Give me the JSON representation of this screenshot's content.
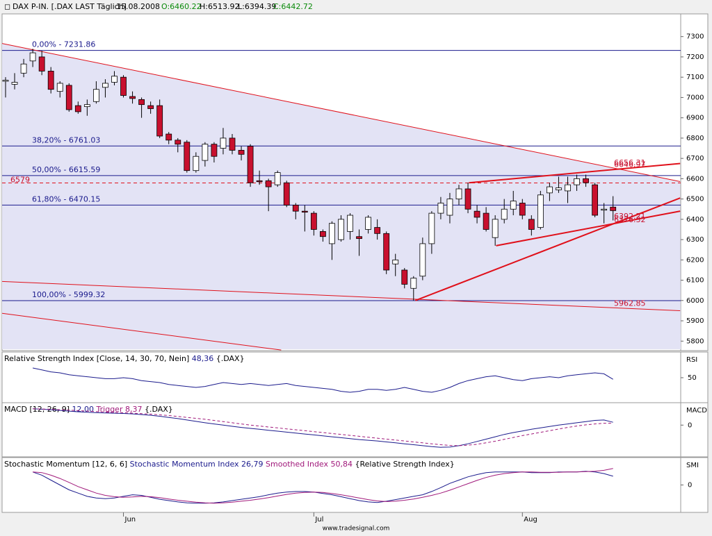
{
  "header": {
    "instrument": "DAX P-IN. [.DAX LAST Täglich]",
    "date": "15.08.2008",
    "open": "O:6460.22",
    "high": "H:6513.92",
    "low": "L:6394.39",
    "close": "C:6442.72"
  },
  "footer": "www.tradesignal.com",
  "chart_data": [
    {
      "type": "candlestick",
      "categories": [
        null,
        null,
        null,
        null,
        null,
        null,
        null,
        null,
        null,
        null,
        null,
        null,
        null,
        "Jun",
        null,
        null,
        null,
        null,
        null,
        null,
        null,
        null,
        null,
        null,
        null,
        null,
        null,
        null,
        null,
        null,
        null,
        null,
        null,
        null,
        "Jul",
        null,
        null,
        null,
        null,
        null,
        null,
        null,
        null,
        null,
        null,
        null,
        null,
        null,
        null,
        null,
        null,
        null,
        null,
        null,
        null,
        null,
        null,
        "Aug",
        null,
        null,
        null,
        null,
        null,
        null,
        null,
        null,
        null,
        null
      ],
      "open": [
        7080,
        7065,
        7120,
        7180,
        7200,
        7130,
        7030,
        7060,
        6960,
        6955,
        6980,
        7050,
        7075,
        7100,
        7005,
        6990,
        6960,
        6960,
        6820,
        6790,
        6780,
        6640,
        6690,
        6770,
        6750,
        6800,
        6740,
        6760,
        6590,
        6590,
        6570,
        6580,
        6470,
        6440,
        6430,
        6340,
        6280,
        6300,
        6340,
        6315,
        6350,
        6360,
        6330,
        6180,
        6150,
        6060,
        6120,
        6280,
        6430,
        6420,
        6500,
        6550,
        6440,
        6430,
        6310,
        6400,
        6450,
        6480,
        6400,
        6360,
        6530,
        6545,
        6540,
        6570,
        6600,
        6570,
        6445,
        6460.22
      ],
      "high": [
        7100,
        7120,
        7190,
        7240,
        7230,
        7150,
        7080,
        7070,
        6980,
        6990,
        7080,
        7090,
        7130,
        7110,
        7030,
        7000,
        6980,
        6990,
        6830,
        6800,
        6790,
        6730,
        6780,
        6780,
        6850,
        6820,
        6760,
        6770,
        6640,
        6600,
        6640,
        6590,
        6480,
        6470,
        6440,
        6350,
        6390,
        6420,
        6430,
        6350,
        6420,
        6400,
        6340,
        6230,
        6160,
        6120,
        6310,
        6440,
        6510,
        6530,
        6570,
        6580,
        6470,
        6460,
        6420,
        6500,
        6540,
        6500,
        6420,
        6540,
        6580,
        6610,
        6610,
        6620,
        6620,
        6580,
        6480,
        6513.92
      ],
      "low": [
        7000,
        7040,
        7100,
        7150,
        7110,
        7020,
        7000,
        6930,
        6920,
        6910,
        6970,
        7000,
        7060,
        7000,
        6970,
        6900,
        6920,
        6800,
        6770,
        6730,
        6630,
        6630,
        6660,
        6680,
        6720,
        6720,
        6690,
        6560,
        6570,
        6440,
        6560,
        6460,
        6400,
        6340,
        6320,
        6290,
        6200,
        6290,
        6300,
        6220,
        6330,
        6300,
        6130,
        6120,
        6060,
        6000,
        6100,
        6230,
        6400,
        6380,
        6470,
        6430,
        6380,
        6340,
        6270,
        6380,
        6420,
        6400,
        6320,
        6350,
        6490,
        6530,
        6480,
        6540,
        6560,
        6410,
        6380,
        6394.39
      ],
      "close": [
        7085,
        7075,
        7165,
        7220,
        7130,
        7040,
        7070,
        6940,
        6930,
        6965,
        7040,
        7070,
        7105,
        7010,
        6995,
        6965,
        6945,
        6810,
        6790,
        6770,
        6640,
        6710,
        6770,
        6710,
        6800,
        6740,
        6720,
        6580,
        6585,
        6560,
        6630,
        6470,
        6440,
        6435,
        6350,
        6315,
        6380,
        6400,
        6420,
        6305,
        6410,
        6330,
        6150,
        6200,
        6080,
        6110,
        6280,
        6430,
        6480,
        6500,
        6550,
        6450,
        6410,
        6350,
        6400,
        6450,
        6490,
        6420,
        6350,
        6520,
        6560,
        6555,
        6570,
        6600,
        6580,
        6420,
        6450,
        6442.72
      ],
      "up_color": "#ffffff",
      "down_color": "#c8102e",
      "ylim": [
        5760,
        7405
      ],
      "yticks": [
        5800,
        5900,
        6000,
        6100,
        6200,
        6300,
        6400,
        6500,
        6600,
        6700,
        6800,
        6900,
        7000,
        7100,
        7200,
        7300
      ],
      "fib_levels": [
        {
          "label": "0,00% - 7231.86",
          "value": 7231.86
        },
        {
          "label": "38,20% - 6761.03",
          "value": 6761.03
        },
        {
          "label": "50,00% - 6615.59",
          "value": 6615.59
        },
        {
          "label": "61,80% - 6470.15",
          "value": 6470.15
        },
        {
          "label": "100,00% - 5999.32",
          "value": 5999.32
        }
      ],
      "dashed_level": 6579,
      "trend_labels": [
        6656.31,
        6646.97,
        6392.21,
        6376.32,
        5962.85
      ],
      "trendlines": [
        [
          [
            -0.38,
            7266
          ],
          [
            74.4,
            6586
          ]
        ],
        [
          [
            -0.38,
            6094
          ],
          [
            74.4,
            5950
          ]
        ],
        [
          [
            -0.38,
            5937
          ],
          [
            30.4,
            5756
          ]
        ],
        [
          [
            45.2,
            6000
          ],
          [
            74.4,
            6505
          ]
        ],
        [
          [
            54.1,
            6270
          ],
          [
            74.4,
            6440
          ]
        ],
        [
          [
            51.1,
            6580
          ],
          [
            74.4,
            6675
          ]
        ]
      ],
      "line_color": "#e0101a",
      "fib_color": "#1a1a8c",
      "shade": "#e3e3f5"
    },
    {
      "type": "line",
      "title": "Relative Strength Index [Close, 14, 30, 70, Nein]",
      "value_text": "48,36",
      "source": "{.DAX}",
      "axis_title": "RSI",
      "series": [
        {
          "name": "RSI",
          "color": "#1a1a8c",
          "dash": false,
          "values": [
            null,
            null,
            null,
            60,
            58,
            56,
            55,
            53,
            52,
            51,
            50,
            49,
            49,
            50,
            49,
            47,
            46,
            45,
            43,
            42,
            41,
            40,
            41,
            43,
            45,
            44,
            43,
            44,
            43,
            42,
            43,
            44,
            42,
            41,
            40,
            39,
            38,
            36,
            35,
            36,
            38,
            38,
            37,
            38,
            40,
            38,
            36,
            35,
            37,
            40,
            44,
            47,
            49,
            51,
            52,
            50,
            48,
            47,
            49,
            50,
            51,
            50,
            52,
            53,
            54,
            55,
            54,
            48.36
          ]
        }
      ],
      "ylim": [
        25,
        75
      ],
      "yticks": [
        50
      ]
    },
    {
      "type": "line",
      "title": "MACD [12, 26, 9]",
      "value_text": "12,00",
      "trigger_text": "Trigger 8,37",
      "source": "{.DAX}",
      "axis_title": "MACD",
      "series": [
        {
          "name": "MACD",
          "color": "#1a1a8c",
          "dash": false,
          "values": [
            null,
            null,
            null,
            70,
            68,
            66,
            63,
            60,
            57,
            55,
            53,
            52,
            51,
            50,
            48,
            45,
            42,
            38,
            33,
            28,
            22,
            16,
            10,
            5,
            0,
            -5,
            -10,
            -14,
            -18,
            -22,
            -26,
            -30,
            -34,
            -38,
            -42,
            -46,
            -50,
            -54,
            -58,
            -62,
            -65,
            -68,
            -72,
            -76,
            -80,
            -84,
            -88,
            -92,
            -95,
            -94,
            -88,
            -80,
            -70,
            -60,
            -50,
            -40,
            -32,
            -25,
            -18,
            -12,
            -6,
            0,
            5,
            10,
            15,
            20,
            22,
            12
          ]
        },
        {
          "name": "Trigger",
          "color": "#a0187a",
          "dash": true,
          "values": [
            null,
            null,
            null,
            70,
            69,
            68,
            66,
            64,
            62,
            60,
            58,
            56,
            54,
            53,
            51,
            49,
            47,
            44,
            41,
            37,
            33,
            29,
            25,
            20,
            15,
            10,
            5,
            0,
            -4,
            -8,
            -12,
            -16,
            -20,
            -24,
            -28,
            -32,
            -36,
            -40,
            -44,
            -48,
            -52,
            -56,
            -60,
            -64,
            -68,
            -72,
            -76,
            -80,
            -84,
            -87,
            -88,
            -86,
            -82,
            -76,
            -69,
            -61,
            -53,
            -45,
            -38,
            -31,
            -24,
            -17,
            -10,
            -4,
            1,
            5,
            8,
            8.37
          ]
        }
      ],
      "ylim": [
        -130,
        90
      ],
      "yticks": [
        0
      ]
    },
    {
      "type": "line",
      "title": "Stochastic Momentum [12, 6, 6]",
      "value_text": "Stochastic Momentum Index 26,79",
      "trigger_text": "Smoothed Index 50,84",
      "source": "{Relative Strength Index}",
      "axis_title": "SMI",
      "series": [
        {
          "name": "SMI",
          "color": "#1a1a8c",
          "dash": false,
          "values": [
            null,
            null,
            null,
            40,
            30,
            15,
            0,
            -15,
            -25,
            -35,
            -40,
            -42,
            -40,
            -35,
            -30,
            -32,
            -38,
            -44,
            -48,
            -52,
            -55,
            -56,
            -56,
            -55,
            -52,
            -48,
            -44,
            -40,
            -36,
            -30,
            -25,
            -22,
            -20,
            -20,
            -22,
            -26,
            -30,
            -36,
            -42,
            -48,
            -52,
            -54,
            -50,
            -45,
            -40,
            -35,
            -30,
            -20,
            -8,
            5,
            15,
            25,
            32,
            38,
            40,
            40,
            40,
            40,
            38,
            38,
            38,
            40,
            40,
            40,
            42,
            40,
            35,
            26.79
          ]
        },
        {
          "name": "Smoothed",
          "color": "#a0187a",
          "dash": false,
          "values": [
            null,
            null,
            null,
            40,
            38,
            30,
            20,
            8,
            -5,
            -15,
            -25,
            -32,
            -36,
            -38,
            -37,
            -35,
            -36,
            -39,
            -43,
            -47,
            -50,
            -53,
            -55,
            -56,
            -55,
            -53,
            -50,
            -47,
            -43,
            -39,
            -34,
            -29,
            -25,
            -23,
            -22,
            -23,
            -26,
            -30,
            -35,
            -40,
            -45,
            -49,
            -51,
            -50,
            -47,
            -43,
            -38,
            -32,
            -25,
            -16,
            -6,
            4,
            14,
            23,
            30,
            35,
            38,
            40,
            40,
            39,
            39,
            39,
            40,
            40,
            41,
            42,
            45,
            50.84
          ]
        }
      ],
      "ylim": [
        -80,
        80
      ],
      "yticks": [
        0
      ]
    }
  ]
}
